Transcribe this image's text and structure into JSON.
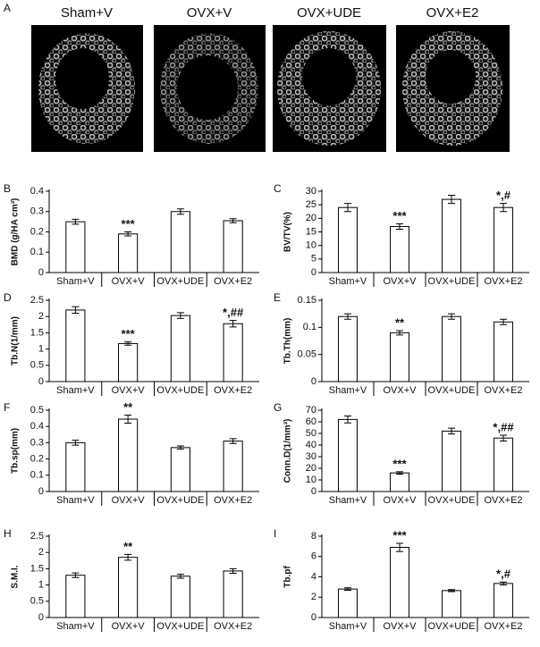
{
  "panel_a": {
    "label": "A",
    "titles": [
      "Sham+V",
      "OVX+V",
      "OVX+UDE",
      "OVX+E2"
    ]
  },
  "chart_data": [
    {
      "type": "bar",
      "panel": "B",
      "ylabel": "BMD (g/HA cm³)",
      "categories": [
        "Sham+V",
        "OVX+V",
        "OVX+UDE",
        "OVX+E2"
      ],
      "values": [
        0.25,
        0.19,
        0.3,
        0.255
      ],
      "errors": [
        0.012,
        0.01,
        0.013,
        0.01
      ],
      "annotations": [
        null,
        "***",
        null,
        null
      ],
      "ylim": [
        0,
        0.4
      ],
      "yticks": [
        0,
        0.1,
        0.2,
        0.3,
        0.4
      ],
      "color": "#ffffff"
    },
    {
      "type": "bar",
      "panel": "C",
      "ylabel": "BV/TV(%)",
      "categories": [
        "Sham+V",
        "OVX+V",
        "OVX+UDE",
        "OVX+E2"
      ],
      "values": [
        24,
        17,
        27,
        24
      ],
      "errors": [
        1.5,
        1,
        1.5,
        1.5
      ],
      "annotations": [
        null,
        "***",
        null,
        "*,#"
      ],
      "ylim": [
        0,
        30
      ],
      "yticks": [
        0,
        5,
        10,
        15,
        20,
        25,
        30
      ],
      "color": "#ffffff"
    },
    {
      "type": "bar",
      "panel": "D",
      "ylabel": "Tb.N(1/mm)",
      "categories": [
        "Sham+V",
        "OVX+V",
        "OVX+UDE",
        "OVX+E2"
      ],
      "values": [
        2.2,
        1.17,
        2.03,
        1.78
      ],
      "errors": [
        0.1,
        0.05,
        0.09,
        0.1
      ],
      "annotations": [
        null,
        "***",
        null,
        "*,##"
      ],
      "ylim": [
        0,
        2.5
      ],
      "yticks": [
        0,
        0.5,
        1,
        1.5,
        2,
        2.5
      ],
      "color": "#ffffff"
    },
    {
      "type": "bar",
      "panel": "E",
      "ylabel": "Tb.Th(mm)",
      "categories": [
        "Sham+V",
        "OVX+V",
        "OVX+UDE",
        "OVX+E2"
      ],
      "values": [
        0.12,
        0.09,
        0.12,
        0.11
      ],
      "errors": [
        0.005,
        0.004,
        0.005,
        0.005
      ],
      "annotations": [
        null,
        "**",
        null,
        null
      ],
      "ylim": [
        0,
        0.15
      ],
      "yticks": [
        0,
        0.05,
        0.1,
        0.15
      ],
      "color": "#ffffff"
    },
    {
      "type": "bar",
      "panel": "F",
      "ylabel": "Tb.sp(mm)",
      "categories": [
        "Sham+V",
        "OVX+V",
        "OVX+UDE",
        "OVX+E2"
      ],
      "values": [
        0.3,
        0.445,
        0.27,
        0.31
      ],
      "errors": [
        0.015,
        0.025,
        0.01,
        0.015
      ],
      "annotations": [
        null,
        "**",
        null,
        null
      ],
      "ylim": [
        0,
        0.5
      ],
      "yticks": [
        0,
        0.1,
        0.2,
        0.3,
        0.4,
        0.5
      ],
      "color": "#ffffff"
    },
    {
      "type": "bar",
      "panel": "G",
      "ylabel": "Conn.D(1/mm³)",
      "categories": [
        "Sham+V",
        "OVX+V",
        "OVX+UDE",
        "OVX+E2"
      ],
      "values": [
        62,
        16,
        52,
        46
      ],
      "errors": [
        3,
        1,
        2.5,
        2.5
      ],
      "annotations": [
        null,
        "***",
        null,
        "*,##"
      ],
      "ylim": [
        0,
        70
      ],
      "yticks": [
        0,
        10,
        20,
        30,
        40,
        50,
        60,
        70
      ],
      "color": "#ffffff"
    },
    {
      "type": "bar",
      "panel": "H",
      "ylabel": "S.M.I.",
      "categories": [
        "Sham+V",
        "OVX+V",
        "OVX+UDE",
        "OVX+E2"
      ],
      "values": [
        1.3,
        1.85,
        1.27,
        1.43
      ],
      "errors": [
        0.07,
        0.09,
        0.06,
        0.07
      ],
      "annotations": [
        null,
        "**",
        null,
        null
      ],
      "ylim": [
        0,
        2.5
      ],
      "yticks": [
        0,
        0.5,
        1,
        1.5,
        2,
        2.5
      ],
      "color": "#ffffff"
    },
    {
      "type": "bar",
      "panel": "I",
      "ylabel": "Tb.pf",
      "categories": [
        "Sham+V",
        "OVX+V",
        "OVX+UDE",
        "OVX+E2"
      ],
      "values": [
        2.8,
        6.9,
        2.65,
        3.35
      ],
      "errors": [
        0.12,
        0.4,
        0.1,
        0.15
      ],
      "annotations": [
        null,
        "***",
        null,
        "*,#"
      ],
      "ylim": [
        0,
        8
      ],
      "yticks": [
        0,
        2,
        4,
        6,
        8
      ],
      "color": "#ffffff"
    }
  ]
}
